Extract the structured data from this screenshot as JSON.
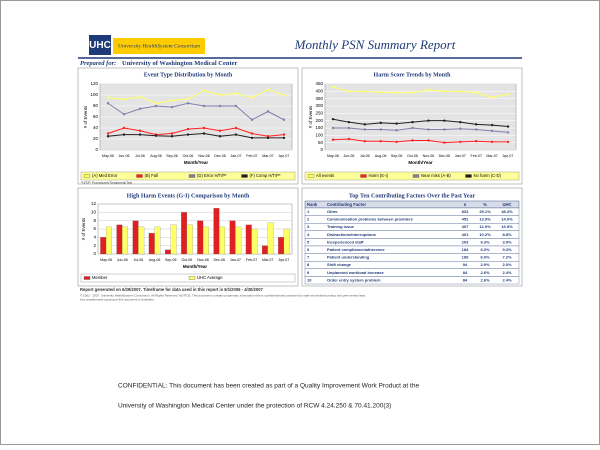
{
  "header": {
    "logo": "UHC",
    "org": "University HealthSystem Consortium",
    "title": "Monthly PSN Summary Report",
    "prepared_label": "Prepared for:",
    "prepared_for": "University of Washington Medical Center"
  },
  "chart_data": [
    {
      "type": "line",
      "title": "Event Type Distribution by Month",
      "xlabel": "Month/Year",
      "ylabel": "# of Events",
      "categories": [
        "May-06",
        "Jun-06",
        "Jul-06",
        "Aug-06",
        "Sep-06",
        "Oct-06",
        "Nov-06",
        "Dec-06",
        "Jan-07",
        "Feb-07",
        "Mar-07",
        "Apr-07"
      ],
      "series": [
        {
          "name": "(A) Med Error",
          "color": "#ffff66",
          "values": [
            95,
            92,
            97,
            85,
            90,
            93,
            108,
            100,
            103,
            95,
            110,
            100
          ]
        },
        {
          "name": "(B) Fall",
          "color": "#ff2020",
          "values": [
            30,
            40,
            35,
            28,
            30,
            38,
            40,
            35,
            40,
            30,
            25,
            28
          ]
        },
        {
          "name": "(D) Error H/T/P*",
          "color": "#8080b0",
          "values": [
            85,
            65,
            75,
            80,
            78,
            85,
            80,
            80,
            80,
            55,
            70,
            55
          ]
        },
        {
          "name": "(F) Comp H/T/P*",
          "color": "#202020",
          "values": [
            25,
            28,
            28,
            26,
            25,
            28,
            30,
            25,
            28,
            22,
            22,
            22
          ]
        }
      ],
      "ylim": [
        0,
        120
      ],
      "yticks": [
        0,
        20,
        40,
        60,
        80,
        100,
        120
      ],
      "grid": true,
      "legend": "bottom",
      "note": "*H/T/P: Procedures/Treatments/Test"
    },
    {
      "type": "line",
      "title": "Harm Score Trends by Month",
      "xlabel": "Month/Year",
      "ylabel": "# of Events",
      "categories": [
        "May-06",
        "Jun-06",
        "Jul-06",
        "Aug-06",
        "Sep-06",
        "Oct-06",
        "Nov-06",
        "Dec-06",
        "Jan-07",
        "Feb-07",
        "Mar-07",
        "Apr-07"
      ],
      "series": [
        {
          "name": "All events",
          "color": "#ffff66",
          "values": [
            430,
            400,
            400,
            395,
            390,
            390,
            410,
            400,
            400,
            390,
            360,
            380
          ]
        },
        {
          "name": "Harm (E-I)",
          "color": "#ff2020",
          "values": [
            70,
            75,
            60,
            60,
            55,
            65,
            65,
            50,
            55,
            60,
            55,
            55
          ]
        },
        {
          "name": "Near miss (A-B)",
          "color": "#8080b0",
          "values": [
            150,
            150,
            140,
            140,
            135,
            150,
            140,
            140,
            145,
            140,
            130,
            120
          ]
        },
        {
          "name": "No harm (C-D)",
          "color": "#202020",
          "values": [
            210,
            190,
            175,
            185,
            180,
            190,
            200,
            200,
            190,
            175,
            170,
            160
          ]
        }
      ],
      "ylim": [
        0,
        450
      ],
      "yticks": [
        0,
        50,
        100,
        150,
        200,
        250,
        300,
        350,
        400,
        450
      ],
      "grid": true,
      "legend": "bottom"
    },
    {
      "type": "bar",
      "title": "High Harm Events (G-I) Comparison by Month",
      "xlabel": "Month/Year",
      "ylabel": "# of Events",
      "categories": [
        "May-06",
        "Jun-06",
        "Jul-06",
        "Aug-06",
        "Sep-06",
        "Oct-06",
        "Nov-06",
        "Dec-06",
        "Jan-07",
        "Feb-07",
        "Mar-07",
        "Apr-07"
      ],
      "series": [
        {
          "name": "Member",
          "color": "#e02020",
          "values": [
            4,
            7,
            8,
            5,
            1,
            10,
            8,
            11,
            8,
            7,
            2,
            4
          ]
        },
        {
          "name": "UHC Average",
          "color": "#ffff66",
          "values": [
            6.5,
            6.5,
            6.5,
            6.5,
            7,
            7,
            6.5,
            6.5,
            6.5,
            6,
            7.5,
            6
          ]
        }
      ],
      "ylim": [
        0,
        12
      ],
      "yticks": [
        0,
        2,
        4,
        6,
        8,
        10,
        12
      ],
      "grid": true,
      "legend": "bottom"
    }
  ],
  "table": {
    "title": "Top Ten Contributing Factors Over the Past Year",
    "columns": [
      "Rank",
      "Contributing Factor",
      "n",
      "%",
      "UHC"
    ],
    "rows": [
      [
        "1",
        "Other",
        "833",
        "25.1%",
        "48.3%"
      ],
      [
        "2",
        "Communication problems between providers",
        "452",
        "13.9%",
        "14.0%"
      ],
      [
        "3",
        "Training issue",
        "407",
        "12.0%",
        "16.9%"
      ],
      [
        "4",
        "Distractions/interruptions",
        "401",
        "10.2%",
        "8.8%"
      ],
      [
        "5",
        "Inexperienced staff",
        "203",
        "6.3%",
        "3.9%"
      ],
      [
        "6",
        "Patient compliance/adherence",
        "184",
        "6.0%",
        "9.3%"
      ],
      [
        "7",
        "Patient understanding",
        "189",
        "6.0%",
        "7.2%"
      ],
      [
        "8",
        "Shift change",
        "94",
        "2.9%",
        "2.0%"
      ],
      [
        "9",
        "Unplanned workload increase",
        "84",
        "2.6%",
        "2.4%"
      ],
      [
        "10",
        "Order entry system problem",
        "84",
        "2.6%",
        "2.4%"
      ]
    ]
  },
  "footer": {
    "generated": "Report generated on 6/29/2007. Timeframe for data used in this report is 5/1/2006 - 4/30/2007",
    "copyright": "© 2002 - 2007. University HealthSystem Consortium. All Rights Reserved. NOTICE: This document contains proprietary information that is confidential and protected by state and federal privacy and peer review laws.",
    "copyright2": "Any unauthorized copying of this document is forbidden.",
    "confidential1": "CONFIDENTIAL:  This document has been created as part of a Quality Improvement Work Product at the",
    "confidential2": "University of Washington Medical Center under the protection of RCW 4.24.250 & 70.41.200(3)"
  }
}
